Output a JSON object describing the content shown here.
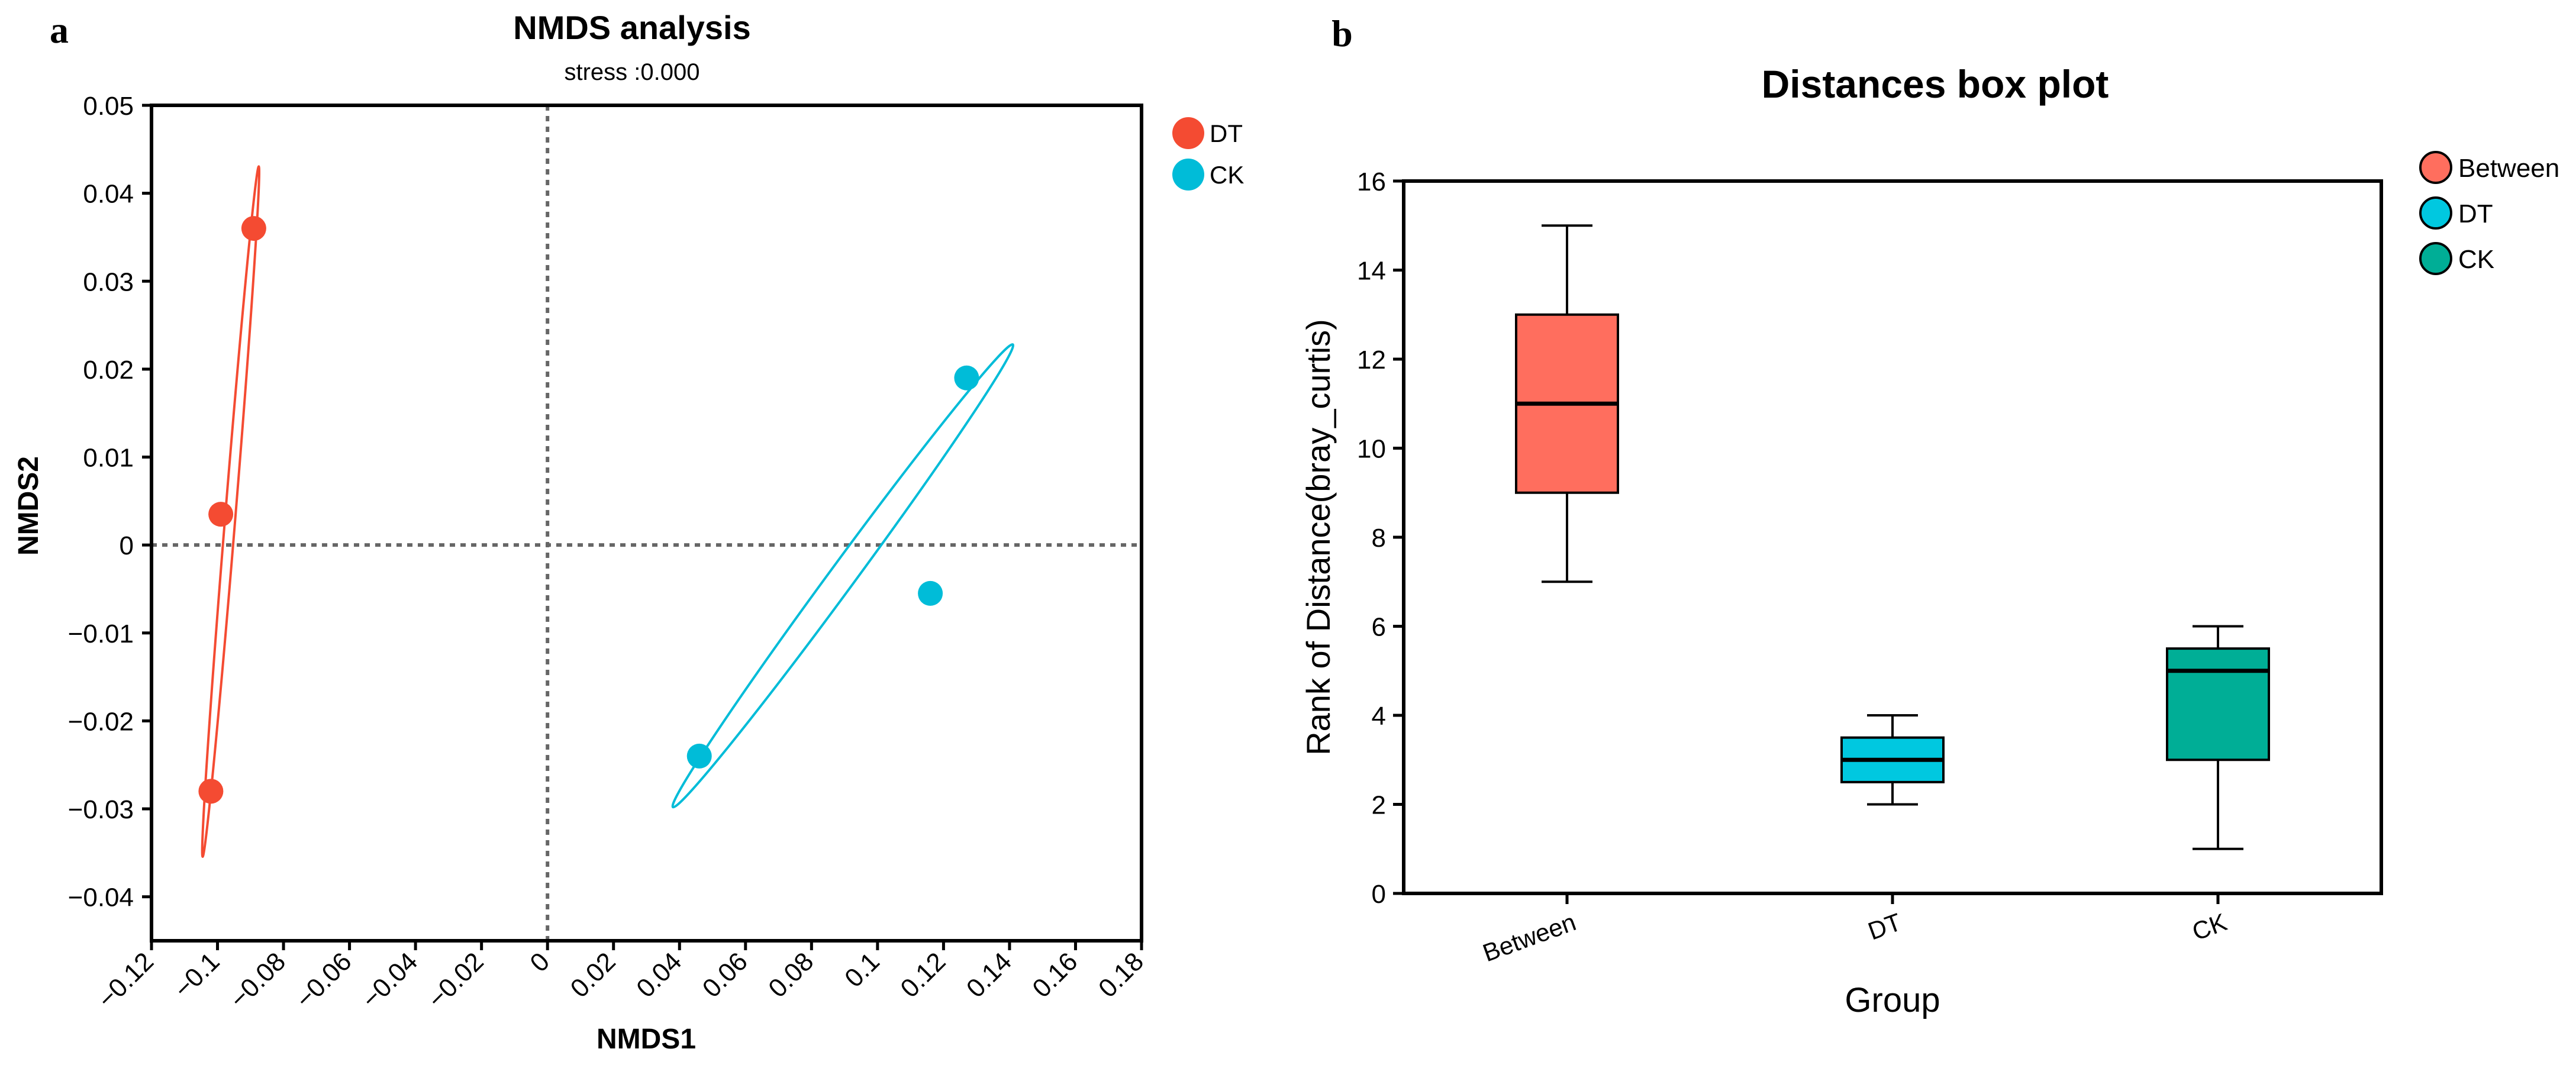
{
  "chart_data": [
    {
      "panel_label": "a",
      "type": "scatter",
      "title": "NMDS analysis",
      "subtitle": "stress :0.000",
      "xlabel": "NMDS1",
      "ylabel": "NMDS2",
      "xlim": [
        -0.12,
        0.18
      ],
      "ylim": [
        -0.045,
        0.05
      ],
      "xticks": [
        -0.12,
        -0.1,
        -0.08,
        -0.06,
        -0.04,
        -0.02,
        0,
        0.02,
        0.04,
        0.06,
        0.08,
        0.1,
        0.12,
        0.14,
        0.16,
        0.18
      ],
      "xtick_labels": [
        "−0.12",
        "−0.1",
        "−0.08",
        "−0.06",
        "−0.04",
        "−0.02",
        "0",
        "0.02",
        "0.04",
        "0.06",
        "0.08",
        "0.1",
        "0.12",
        "0.14",
        "0.16",
        "0.18"
      ],
      "yticks": [
        0.05,
        0.04,
        0.03,
        0.02,
        0.01,
        0,
        -0.01,
        -0.02,
        -0.03,
        -0.04
      ],
      "ytick_labels": [
        "0.05",
        "0.04",
        "0.03",
        "0.02",
        "0.01",
        "0",
        "−0.01",
        "−0.02",
        "−0.03",
        "−0.04"
      ],
      "reference_lines": {
        "x": 0,
        "y": 0,
        "style": "dotted"
      },
      "legend_position": "top-right outside",
      "series": [
        {
          "name": "DT",
          "color": "#f44b32",
          "points": [
            {
              "x": -0.089,
              "y": 0.036
            },
            {
              "x": -0.099,
              "y": 0.0035
            },
            {
              "x": -0.102,
              "y": -0.028
            }
          ],
          "ellipse": {
            "cx": -0.096,
            "cy": 0.0038,
            "endpoints": [
              [
                -0.0875,
                0.043
              ],
              [
                -0.1045,
                -0.0355
              ]
            ],
            "semi_minor": 0.00155
          }
        },
        {
          "name": "CK",
          "color": "#00bcd8",
          "points": [
            {
              "x": 0.127,
              "y": 0.019
            },
            {
              "x": 0.116,
              "y": -0.0055
            },
            {
              "x": 0.046,
              "y": -0.024
            }
          ],
          "ellipse": {
            "cx": 0.0895,
            "cy": -0.0035,
            "endpoints": [
              [
                0.1465,
                0.0228
              ],
              [
                0.0435,
                -0.0298
              ]
            ],
            "semi_minor": 0.0039
          }
        }
      ]
    },
    {
      "panel_label": "b",
      "type": "box",
      "title": "Distances box plot",
      "xlabel": "Group",
      "ylabel": "Rank of Distance(bray_curtis)",
      "ylim": [
        0,
        16
      ],
      "yticks": [
        0,
        2,
        4,
        6,
        8,
        10,
        12,
        14,
        16
      ],
      "ytick_labels": [
        "0",
        "2",
        "4",
        "6",
        "8",
        "10",
        "12",
        "14",
        "16"
      ],
      "legend_position": "top-right outside",
      "categories": [
        "Between",
        "DT",
        "CK"
      ],
      "boxes": [
        {
          "name": "Between",
          "color": "#ff6e5e",
          "min": 7,
          "q1": 9,
          "median": 11,
          "q3": 13,
          "max": 15
        },
        {
          "name": "DT",
          "color": "#00c8e0",
          "min": 2,
          "q1": 2.5,
          "median": 3,
          "q3": 3.5,
          "max": 4
        },
        {
          "name": "CK",
          "color": "#00ae96",
          "min": 1,
          "q1": 3,
          "median": 5,
          "q3": 5.5,
          "max": 6
        }
      ]
    }
  ]
}
